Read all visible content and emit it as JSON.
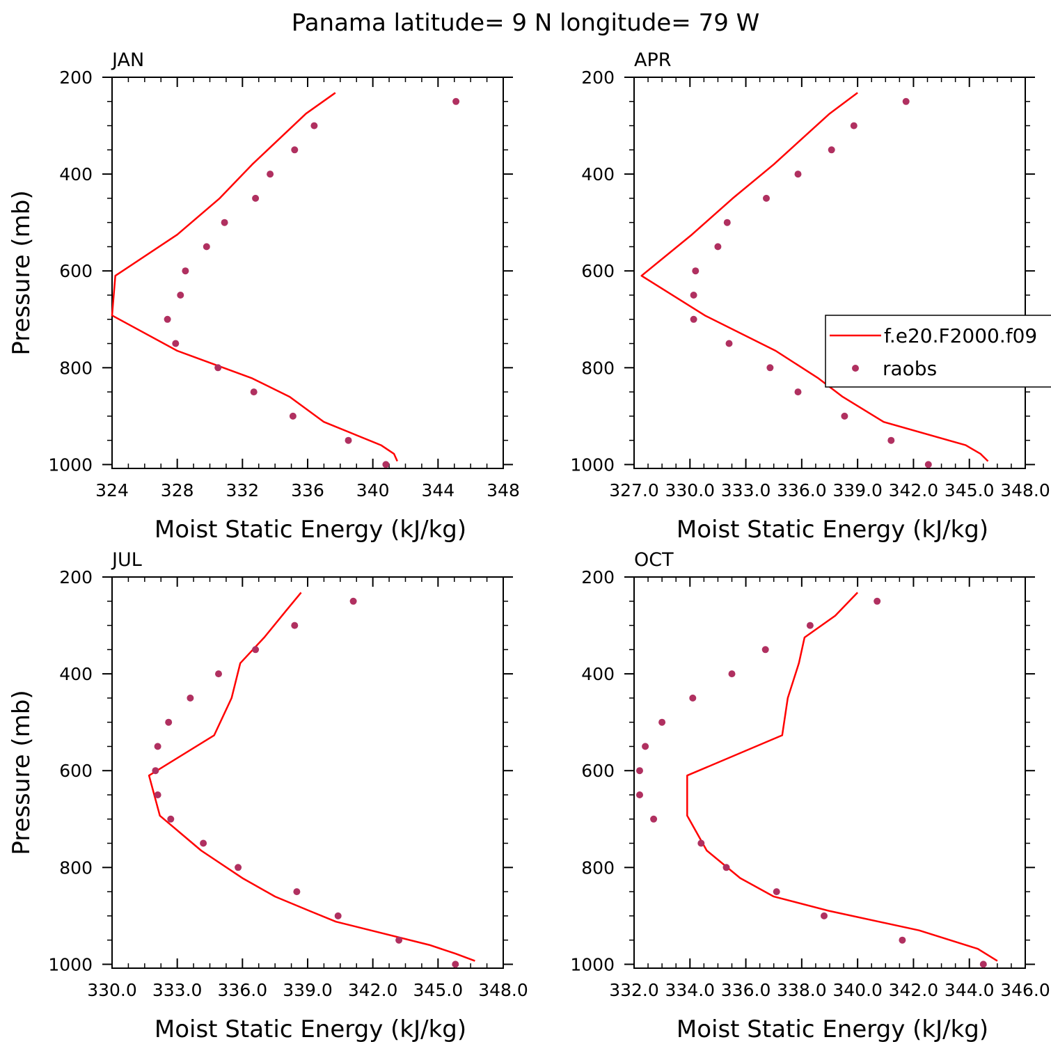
{
  "figure": {
    "title": "Panama  latitude= 9 N longitude= 79 W",
    "model_color": "#ff0000",
    "obs_color": "#b03060"
  },
  "chart_data": [
    {
      "type": "line",
      "title": "JAN",
      "xlabel": "Moist Static Energy (kJ/kg)",
      "ylabel": "Pressure (mb)",
      "xlim": [
        324,
        348
      ],
      "ylim": [
        200,
        1000
      ],
      "xticks": [
        324,
        328,
        332,
        336,
        340,
        344,
        348
      ],
      "xticklabels": [
        "324",
        "328",
        "332",
        "336",
        "340",
        "344",
        "348"
      ],
      "yticks": [
        200,
        400,
        600,
        800,
        1000
      ],
      "yticklabels": [
        "200",
        "400",
        "600",
        "800",
        "1000"
      ],
      "series": [
        {
          "name": "f.e20.F2000.f09",
          "kind": "line",
          "x": [
            337.7,
            335.9,
            332.6,
            330.6,
            328.0,
            324.2,
            324.0,
            328.0,
            332.6,
            334.9,
            337.0,
            340.5,
            341.3,
            341.5
          ],
          "y": [
            232,
            275,
            380,
            450,
            525,
            610,
            692,
            765,
            822,
            860,
            912,
            960,
            978,
            993
          ]
        },
        {
          "name": "raobs",
          "kind": "scatter",
          "x": [
            345.1,
            336.4,
            335.2,
            333.7,
            332.8,
            330.9,
            329.8,
            328.5,
            328.2,
            327.4,
            327.9,
            330.5,
            332.7,
            335.1,
            338.5,
            340.8
          ],
          "y": [
            250,
            300,
            350,
            400,
            450,
            500,
            550,
            600,
            650,
            700,
            750,
            800,
            850,
            900,
            950,
            1000
          ]
        }
      ]
    },
    {
      "type": "line",
      "title": "APR",
      "xlabel": "Moist Static Energy (kJ/kg)",
      "ylabel": "",
      "xlim": [
        327.0,
        348.0
      ],
      "ylim": [
        200,
        1000
      ],
      "xticks": [
        327,
        330,
        333,
        336,
        339,
        342,
        345,
        348
      ],
      "xticklabels": [
        "327.0",
        "330.0",
        "333.0",
        "336.0",
        "339.0",
        "342.0",
        "345.0",
        "348.0"
      ],
      "yticks": [
        200,
        400,
        600,
        800,
        1000
      ],
      "yticklabels": [
        "200",
        "400",
        "600",
        "800",
        "1000"
      ],
      "series": [
        {
          "name": "f.e20.F2000.f09",
          "kind": "line",
          "x": [
            339.0,
            337.5,
            334.5,
            332.3,
            330.1,
            327.4,
            330.8,
            334.6,
            336.9,
            338.2,
            340.4,
            344.8,
            345.6,
            346.0
          ],
          "y": [
            232,
            275,
            380,
            450,
            525,
            610,
            692,
            765,
            822,
            860,
            912,
            960,
            978,
            993
          ]
        },
        {
          "name": "raobs",
          "kind": "scatter",
          "x": [
            341.6,
            338.8,
            337.6,
            335.8,
            334.1,
            332.0,
            331.5,
            330.3,
            330.2,
            330.2,
            332.1,
            334.3,
            335.8,
            338.3,
            340.8,
            342.8
          ],
          "y": [
            250,
            300,
            350,
            400,
            450,
            500,
            550,
            600,
            650,
            700,
            750,
            800,
            850,
            900,
            950,
            1000
          ]
        }
      ]
    },
    {
      "type": "line",
      "title": "JUL",
      "xlabel": "Moist Static Energy (kJ/kg)",
      "ylabel": "Pressure (mb)",
      "xlim": [
        330.0,
        348.0
      ],
      "ylim": [
        200,
        1000
      ],
      "xticks": [
        330,
        333,
        336,
        339,
        342,
        345,
        348
      ],
      "xticklabels": [
        "330.0",
        "333.0",
        "336.0",
        "339.0",
        "342.0",
        "345.0",
        "348.0"
      ],
      "yticks": [
        200,
        400,
        600,
        800,
        1000
      ],
      "yticklabels": [
        "200",
        "400",
        "600",
        "800",
        "1000"
      ],
      "series": [
        {
          "name": "f.e20.F2000.f09",
          "kind": "line",
          "x": [
            338.7,
            338.0,
            337.0,
            335.9,
            335.5,
            334.7,
            331.7,
            332.2,
            334.1,
            336.0,
            337.5,
            339.1,
            340.3,
            344.6,
            345.8,
            346.7
          ],
          "y": [
            232,
            270,
            325,
            378,
            450,
            527,
            610,
            693,
            765,
            822,
            860,
            890,
            912,
            960,
            978,
            993
          ]
        },
        {
          "name": "raobs",
          "kind": "scatter",
          "x": [
            341.1,
            338.4,
            336.6,
            334.9,
            333.6,
            332.6,
            332.1,
            332.0,
            332.1,
            332.7,
            334.2,
            335.8,
            338.5,
            340.4,
            343.2,
            345.8
          ],
          "y": [
            250,
            300,
            350,
            400,
            450,
            500,
            550,
            600,
            650,
            700,
            750,
            800,
            850,
            900,
            950,
            1000
          ]
        }
      ]
    },
    {
      "type": "line",
      "title": "OCT",
      "xlabel": "Moist Static Energy (kJ/kg)",
      "ylabel": "",
      "xlim": [
        332.0,
        346.0
      ],
      "ylim": [
        200,
        1000
      ],
      "xticks": [
        332,
        334,
        336,
        338,
        340,
        342,
        344,
        346
      ],
      "xticklabels": [
        "332.0",
        "334.0",
        "336.0",
        "338.0",
        "340.0",
        "342.0",
        "344.0",
        "346.0"
      ],
      "yticks": [
        200,
        400,
        600,
        800,
        1000
      ],
      "yticklabels": [
        "200",
        "400",
        "600",
        "800",
        "1000"
      ],
      "series": [
        {
          "name": "f.e20.F2000.f09",
          "kind": "line",
          "x": [
            340.0,
            339.2,
            338.1,
            337.9,
            337.5,
            337.3,
            333.9,
            333.9,
            334.6,
            335.8,
            337.0,
            339.0,
            342.2,
            344.3,
            345.0
          ],
          "y": [
            232,
            280,
            325,
            378,
            450,
            527,
            610,
            693,
            765,
            822,
            860,
            890,
            930,
            968,
            993
          ]
        },
        {
          "name": "raobs",
          "kind": "scatter",
          "x": [
            340.7,
            338.3,
            336.7,
            335.5,
            334.1,
            333.0,
            332.4,
            332.2,
            332.2,
            332.7,
            334.4,
            335.3,
            337.1,
            338.8,
            341.6,
            344.5
          ],
          "y": [
            250,
            300,
            350,
            400,
            450,
            500,
            550,
            600,
            650,
            700,
            750,
            800,
            850,
            900,
            950,
            1000
          ]
        }
      ]
    }
  ],
  "legend": {
    "items": [
      {
        "label": "f.e20.F2000.f09",
        "kind": "line"
      },
      {
        "label": "raobs",
        "kind": "marker"
      }
    ]
  }
}
